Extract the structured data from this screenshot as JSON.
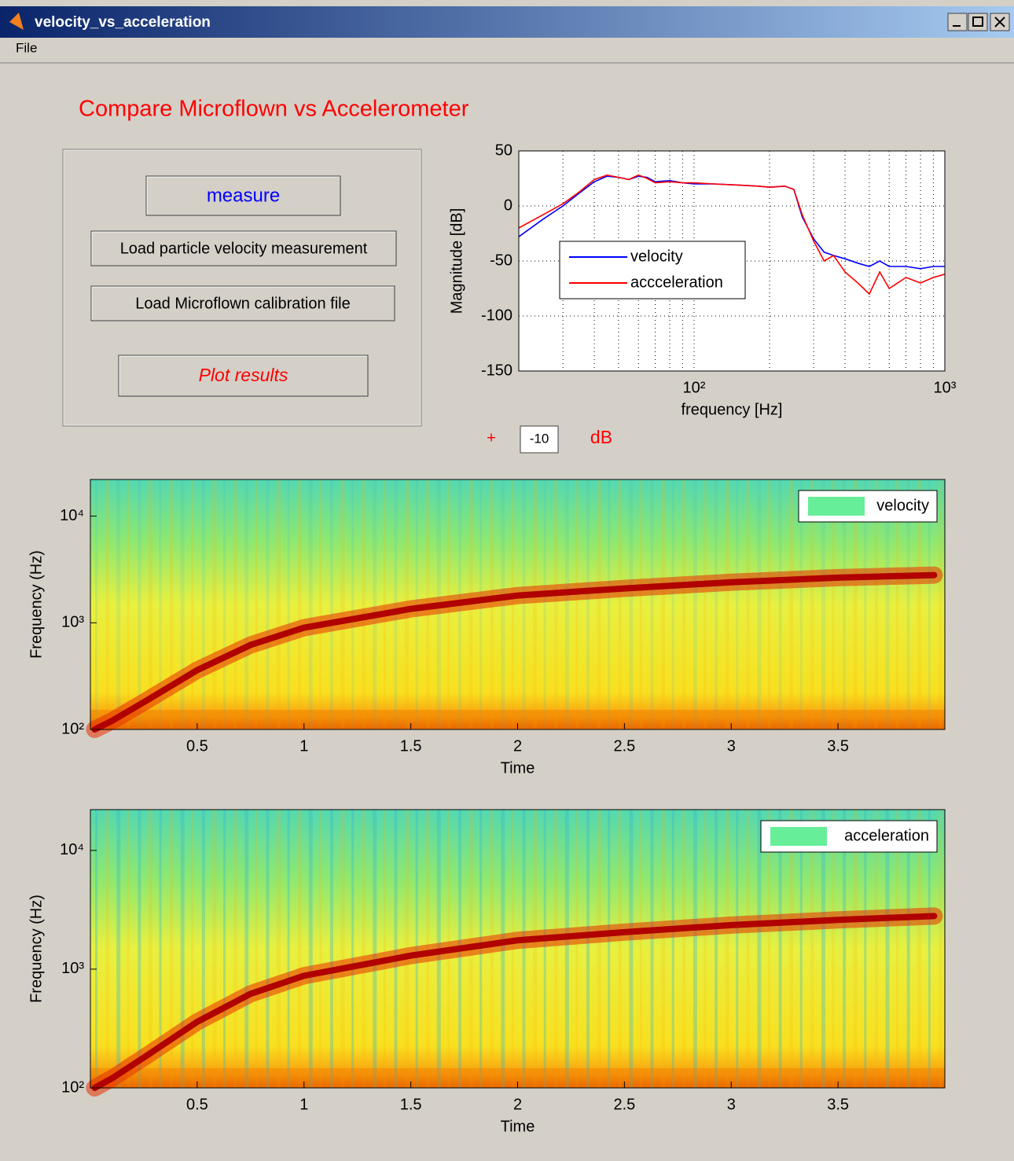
{
  "window": {
    "title": "velocity_vs_acceleration",
    "menu": [
      "File"
    ]
  },
  "heading": "Compare Microflown vs Accelerometer",
  "buttons": [
    "measure",
    "Load particle velocity measurement",
    "Load Microflown calibration file",
    "Plot results"
  ],
  "offset": {
    "prefix": "+",
    "value": "-10",
    "unit": "dB"
  },
  "chart_data": [
    {
      "type": "line",
      "xlabel": "frequency [Hz]",
      "ylabel": "Magnitude [dB]",
      "xscale": "log",
      "grid": true,
      "legend": "center-left",
      "xlim": [
        20,
        1000
      ],
      "ylim": [
        -150,
        50
      ],
      "xticks": [
        {
          "value": 100,
          "label": "10²"
        },
        {
          "value": 1000,
          "label": "10³"
        }
      ],
      "yticks": [
        -150,
        -100,
        -50,
        0,
        50
      ],
      "x": [
        20,
        25,
        30,
        35,
        40,
        45,
        50,
        55,
        60,
        65,
        70,
        80,
        90,
        100,
        120,
        150,
        180,
        200,
        230,
        250,
        270,
        300,
        330,
        360,
        400,
        450,
        500,
        550,
        600,
        700,
        800,
        900,
        1000
      ],
      "series": [
        {
          "name": "velocity",
          "color": "#0000ff",
          "values": [
            -28,
            -12,
            0,
            12,
            22,
            27,
            26,
            24,
            27,
            26,
            22,
            23,
            21,
            20,
            20,
            19,
            18,
            17,
            18,
            15,
            -10,
            -30,
            -42,
            -45,
            -48,
            -52,
            -55,
            -50,
            -55,
            -55,
            -57,
            -55,
            -55
          ]
        },
        {
          "name": "accceleration",
          "color": "#ff0000",
          "values": [
            -20,
            -8,
            2,
            13,
            24,
            28,
            26,
            24,
            28,
            25,
            21,
            22,
            21,
            21,
            20,
            19,
            18,
            17,
            18,
            15,
            -8,
            -32,
            -50,
            -45,
            -60,
            -70,
            -80,
            -60,
            -75,
            -65,
            -70,
            -65,
            -62
          ]
        }
      ]
    },
    {
      "type": "spectrogram",
      "xlabel": "Time",
      "ylabel": "Frequency (Hz)",
      "yscale": "log",
      "legend": "upper-right",
      "xlim": [
        0,
        4
      ],
      "ylim": [
        100,
        22050
      ],
      "xticks": [
        0.5,
        1,
        1.5,
        2,
        2.5,
        3,
        3.5
      ],
      "yticks": [
        {
          "value": 100,
          "label": "10²"
        },
        {
          "value": 1000,
          "label": "10³"
        },
        {
          "value": 10000,
          "label": "10⁴"
        }
      ],
      "x": [
        0.02,
        0.1,
        0.25,
        0.5,
        0.75,
        1,
        1.5,
        2,
        2.5,
        3,
        3.5,
        3.95
      ],
      "series": [
        {
          "name": "velocity",
          "color": "#66ee99",
          "values": [
            100,
            120,
            180,
            360,
            620,
            900,
            1350,
            1800,
            2100,
            2400,
            2650,
            2800
          ]
        }
      ]
    },
    {
      "type": "spectrogram",
      "xlabel": "Time",
      "ylabel": "Frequency (Hz)",
      "yscale": "log",
      "legend": "upper-right",
      "xlim": [
        0,
        4
      ],
      "ylim": [
        100,
        22050
      ],
      "xticks": [
        0.5,
        1,
        1.5,
        2,
        2.5,
        3,
        3.5
      ],
      "yticks": [
        {
          "value": 100,
          "label": "10²"
        },
        {
          "value": 1000,
          "label": "10³"
        },
        {
          "value": 10000,
          "label": "10⁴"
        }
      ],
      "x": [
        0.02,
        0.1,
        0.25,
        0.5,
        0.75,
        1,
        1.5,
        2,
        2.5,
        3,
        3.5,
        3.95
      ],
      "series": [
        {
          "name": "acceleration",
          "color": "#66ee99",
          "values": [
            100,
            120,
            180,
            360,
            620,
            880,
            1300,
            1750,
            2050,
            2350,
            2600,
            2800
          ]
        }
      ]
    }
  ]
}
